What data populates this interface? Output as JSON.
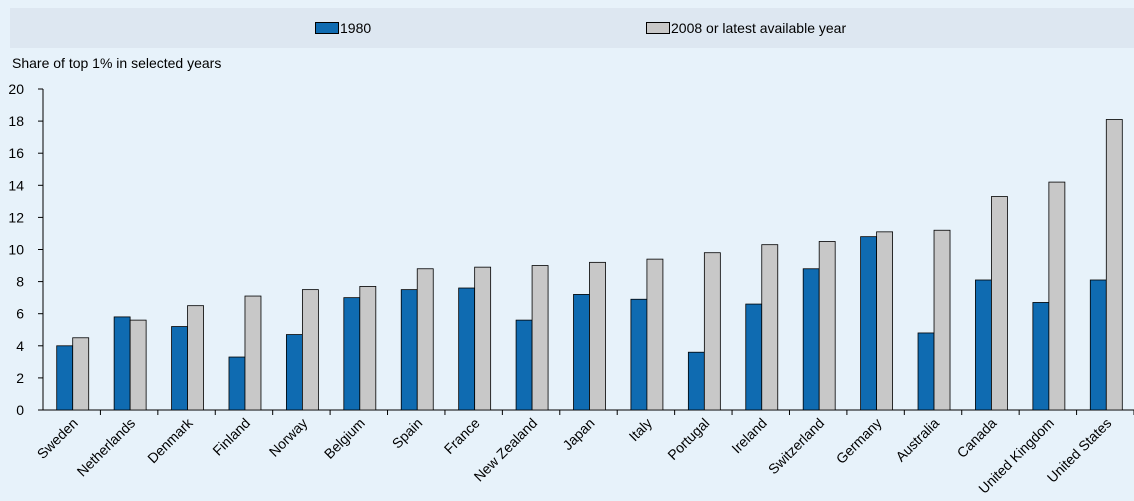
{
  "chart_data": {
    "type": "bar",
    "ylabel": "Share of top 1% in selected years",
    "ylim": [
      0,
      20
    ],
    "yticks": [
      0,
      2,
      4,
      6,
      8,
      10,
      12,
      14,
      16,
      18,
      20
    ],
    "categories": [
      "Sweden",
      "Netherlands",
      "Denmark",
      "Finland",
      "Norway",
      "Belgium",
      "Spain",
      "France",
      "New Zealand",
      "Japan",
      "Italy",
      "Portugal",
      "Ireland",
      "Switzerland",
      "Germany",
      "Australia",
      "Canada",
      "United Kingdom",
      "United States"
    ],
    "series": [
      {
        "name": "1980",
        "color": "#0f6bb1",
        "values": [
          4.0,
          5.8,
          5.2,
          3.3,
          4.7,
          7.0,
          7.5,
          7.6,
          5.6,
          7.2,
          6.9,
          3.6,
          6.6,
          8.8,
          10.8,
          4.8,
          8.1,
          6.7,
          8.1
        ]
      },
      {
        "name": "2008 or latest available year",
        "color": "#c8c8c8",
        "values": [
          4.5,
          5.6,
          6.5,
          7.1,
          7.5,
          7.7,
          8.8,
          8.9,
          9.0,
          9.2,
          9.4,
          9.8,
          10.3,
          10.5,
          11.1,
          11.2,
          13.3,
          14.2,
          18.1
        ]
      }
    ],
    "grid": false,
    "legend": "top"
  }
}
